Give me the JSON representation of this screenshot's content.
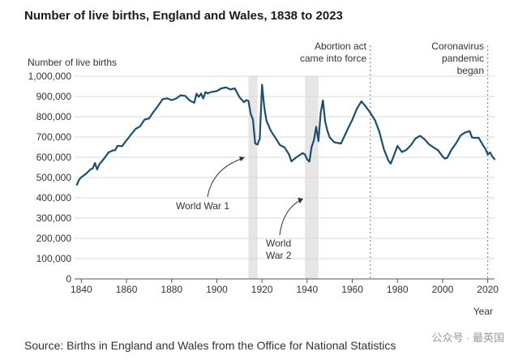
{
  "chart_data": {
    "type": "line",
    "title": "Number of live births, England and Wales, 1838 to 2023",
    "ylabel": "Number of live births",
    "xlabel": "Year",
    "xlim": [
      1837,
      2023
    ],
    "ylim": [
      0,
      1000000
    ],
    "x_ticks": [
      1840,
      1860,
      1880,
      1900,
      1920,
      1940,
      1960,
      1980,
      2000,
      2020
    ],
    "y_ticks": [
      0,
      100000,
      200000,
      300000,
      400000,
      500000,
      600000,
      700000,
      800000,
      900000,
      1000000
    ],
    "y_tick_labels": [
      "0",
      "100,000",
      "200,000",
      "300,000",
      "400,000",
      "500,000",
      "600,000",
      "700,000",
      "800,000",
      "900,000",
      "1,000,000"
    ],
    "x_tick_labels": [
      "1840",
      "1860",
      "1880",
      "1900",
      "1920",
      "1940",
      "1960",
      "1980",
      "2000",
      "2020"
    ],
    "shaded_periods": [
      {
        "label": "World War 1",
        "start": 1914,
        "end": 1918
      },
      {
        "label": "World War 2",
        "start": 1939,
        "end": 1945
      }
    ],
    "event_lines": [
      {
        "year": 1968,
        "label": "Abortion act came into force"
      },
      {
        "year": 2020,
        "label": "Coronavirus pandemic began"
      }
    ],
    "annotation_lines": {
      "abortion": [
        "Abortion act",
        "came into force"
      ],
      "covid": [
        "Coronavirus",
        "pandemic",
        "began"
      ],
      "ww1": [
        "World War 1"
      ],
      "ww2": [
        "World",
        "War 2"
      ]
    },
    "series": [
      {
        "name": "Live births",
        "color": "#1d4e6e",
        "x": [
          1838,
          1839,
          1840,
          1842,
          1844,
          1845,
          1846,
          1847,
          1848,
          1850,
          1852,
          1854,
          1855,
          1856,
          1858,
          1860,
          1862,
          1864,
          1866,
          1868,
          1870,
          1872,
          1874,
          1876,
          1878,
          1880,
          1882,
          1884,
          1886,
          1888,
          1890,
          1891,
          1892,
          1893,
          1894,
          1895,
          1896,
          1897,
          1898,
          1900,
          1902,
          1904,
          1906,
          1908,
          1910,
          1912,
          1913,
          1914,
          1915,
          1916,
          1917,
          1918,
          1919,
          1920,
          1921,
          1922,
          1924,
          1926,
          1928,
          1930,
          1932,
          1933,
          1935,
          1938,
          1939,
          1940,
          1941,
          1942,
          1943,
          1944,
          1945,
          1946,
          1947,
          1948,
          1949,
          1950,
          1952,
          1955,
          1958,
          1960,
          1962,
          1964,
          1966,
          1968,
          1970,
          1972,
          1974,
          1976,
          1977,
          1978,
          1980,
          1982,
          1984,
          1986,
          1988,
          1990,
          1992,
          1994,
          1996,
          1998,
          2000,
          2001,
          2002,
          2004,
          2006,
          2008,
          2010,
          2012,
          2013,
          2014,
          2016,
          2018,
          2019,
          2020,
          2021,
          2022,
          2023
        ],
        "values": [
          465000,
          490000,
          502000,
          518000,
          540000,
          545000,
          572000,
          540000,
          566000,
          593000,
          624000,
          634000,
          635000,
          657000,
          655000,
          684000,
          712000,
          740000,
          753000,
          786000,
          792000,
          825000,
          854000,
          887000,
          891000,
          882000,
          890000,
          906000,
          903000,
          880000,
          869000,
          914000,
          898000,
          915000,
          890000,
          922000,
          915000,
          921000,
          923000,
          927000,
          940000,
          945000,
          935000,
          940000,
          897000,
          872000,
          882000,
          879000,
          815000,
          786000,
          668000,
          663000,
          692000,
          958000,
          849000,
          780000,
          729000,
          695000,
          660000,
          649000,
          614000,
          580000,
          598000,
          621000,
          614000,
          590000,
          579000,
          652000,
          684000,
          751000,
          680000,
          821000,
          881000,
          775000,
          730000,
          698000,
          674000,
          668000,
          740000,
          785000,
          839000,
          876000,
          850000,
          819000,
          784000,
          725000,
          640000,
          584000,
          569000,
          596000,
          656000,
          626000,
          637000,
          661000,
          693000,
          706000,
          689000,
          664000,
          649000,
          635000,
          604000,
          594000,
          597000,
          639000,
          670000,
          708000,
          723000,
          729000,
          698000,
          696000,
          696000,
          657000,
          641000,
          614000,
          624000,
          605000,
          591000
        ]
      }
    ]
  },
  "source": "Source: Births in England and Wales from the Office for National Statistics",
  "watermark": "公众号 · 最英国",
  "colors": {
    "line": "#1d4e6e",
    "grid": "#d9d9d9",
    "shade": "#e6e6e6",
    "axis": "#555555"
  }
}
